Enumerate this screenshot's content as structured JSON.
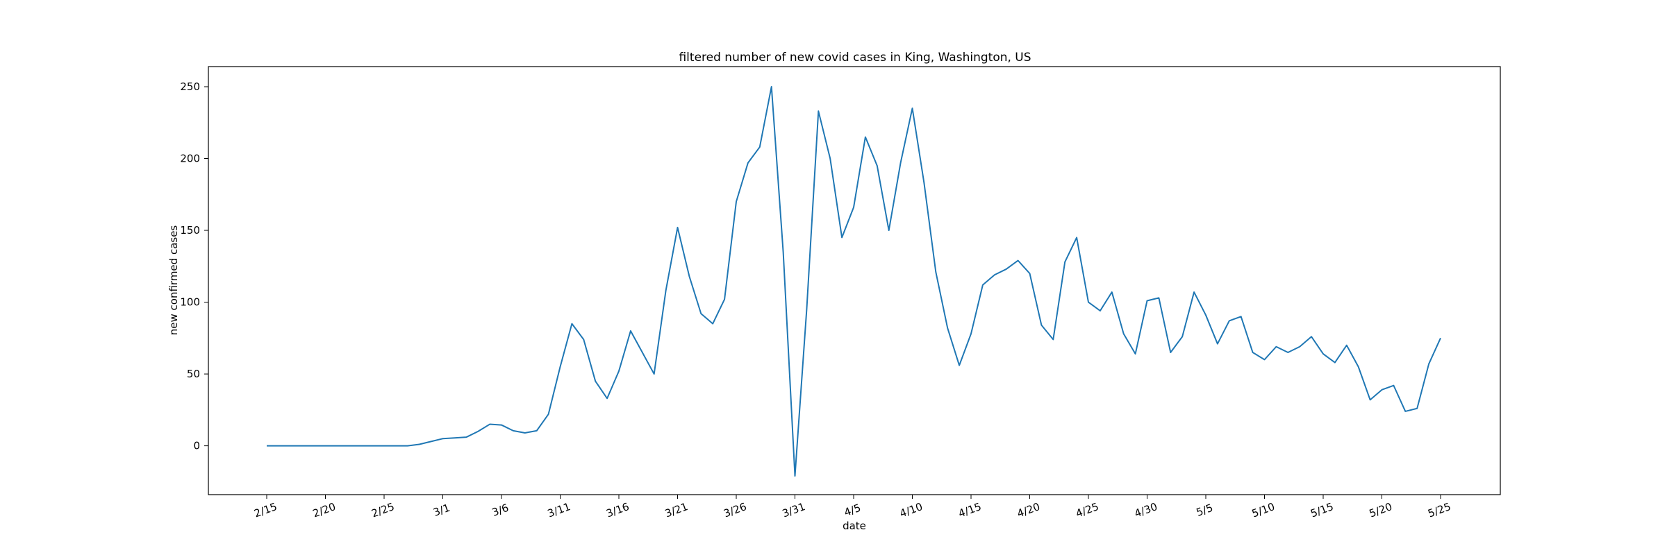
{
  "chart_data": {
    "type": "line",
    "title": "filtered number of new covid cases in King, Washington, US",
    "xlabel": "date",
    "ylabel": "new confirmed cases",
    "x_start": "2/15",
    "x": [
      "2/15",
      "2/16",
      "2/17",
      "2/18",
      "2/19",
      "2/20",
      "2/21",
      "2/22",
      "2/23",
      "2/24",
      "2/25",
      "2/26",
      "2/27",
      "2/28",
      "2/29",
      "3/1",
      "3/2",
      "3/3",
      "3/4",
      "3/5",
      "3/6",
      "3/7",
      "3/8",
      "3/9",
      "3/10",
      "3/11",
      "3/12",
      "3/13",
      "3/14",
      "3/15",
      "3/16",
      "3/17",
      "3/18",
      "3/19",
      "3/20",
      "3/21",
      "3/22",
      "3/23",
      "3/24",
      "3/25",
      "3/26",
      "3/27",
      "3/28",
      "3/29",
      "3/30",
      "3/31",
      "4/1",
      "4/2",
      "4/3",
      "4/4",
      "4/5",
      "4/6",
      "4/7",
      "4/8",
      "4/9",
      "4/10",
      "4/11",
      "4/12",
      "4/13",
      "4/14",
      "4/15",
      "4/16",
      "4/17",
      "4/18",
      "4/19",
      "4/20",
      "4/21",
      "4/22",
      "4/23",
      "4/24",
      "4/25",
      "4/26",
      "4/27",
      "4/28",
      "4/29",
      "4/30",
      "5/1",
      "5/2",
      "5/3",
      "5/4",
      "5/5",
      "5/6",
      "5/7",
      "5/8",
      "5/9",
      "5/10",
      "5/11",
      "5/12",
      "5/13",
      "5/14",
      "5/15",
      "5/16",
      "5/17",
      "5/18",
      "5/19",
      "5/20",
      "5/21",
      "5/22",
      "5/23",
      "5/24",
      "5/25"
    ],
    "series": [
      {
        "color": "#1f77b4",
        "values": [
          0,
          0,
          0,
          0,
          0,
          0,
          0,
          0,
          0,
          0,
          0,
          0,
          0,
          1,
          3,
          5,
          5.5,
          6,
          10,
          15,
          14.5,
          10.5,
          9,
          10.5,
          22,
          55,
          85,
          74,
          45,
          33,
          52,
          80,
          65,
          50,
          108,
          152,
          118,
          92,
          85,
          102,
          170,
          197,
          208,
          250,
          135,
          -21,
          95,
          233,
          200,
          145,
          166,
          215,
          195,
          150,
          197,
          235,
          183,
          121,
          82,
          56,
          78,
          112,
          119,
          123,
          129,
          120,
          84,
          74,
          128,
          145,
          100,
          94,
          107,
          78,
          64,
          101,
          103,
          65,
          76,
          107,
          91,
          71,
          87,
          90,
          65,
          60,
          69,
          65,
          69,
          76,
          64,
          58,
          70,
          55,
          32,
          39,
          42,
          24,
          26,
          57,
          75
        ]
      }
    ],
    "x_tick_labels": [
      "2/15",
      "2/20",
      "2/25",
      "3/1",
      "3/6",
      "3/11",
      "3/16",
      "3/21",
      "3/26",
      "3/31",
      "4/5",
      "4/10",
      "4/15",
      "4/20",
      "4/25",
      "4/30",
      "5/5",
      "5/10",
      "5/15",
      "5/20",
      "5/25"
    ],
    "y_ticks": [
      0,
      50,
      100,
      150,
      200,
      250
    ],
    "ylim": [
      -34,
      264
    ],
    "grid": false,
    "legend": "none"
  }
}
